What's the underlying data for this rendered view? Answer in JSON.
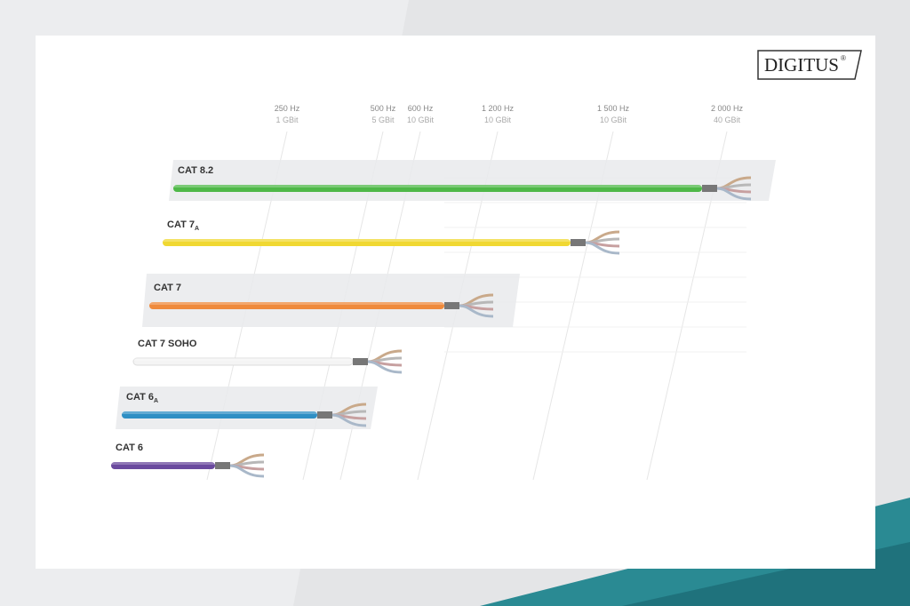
{
  "brand": "DIGITUS",
  "brand_mark": "®",
  "frequencies": [
    {
      "hz": "250 Hz",
      "rate": "1 GBit"
    },
    {
      "hz": "500 Hz",
      "rate": "5 GBit"
    },
    {
      "hz": "600 Hz",
      "rate": "10 GBit"
    },
    {
      "hz": "1 200 Hz",
      "rate": "10 GBit"
    },
    {
      "hz": "1 500 Hz",
      "rate": "10 GBit"
    },
    {
      "hz": "2 000 Hz",
      "rate": "40 GBit"
    }
  ],
  "cables": [
    {
      "name": "CAT 8.2",
      "sub": "",
      "color": "#4fb848"
    },
    {
      "name": "CAT 7",
      "sub": "A",
      "color": "#f0d832"
    },
    {
      "name": "CAT 7",
      "sub": "",
      "color": "#ef8a3c"
    },
    {
      "name": "CAT 7 SOHO",
      "sub": "",
      "color": "#f4f4f4"
    },
    {
      "name": "CAT 6",
      "sub": "A",
      "color": "#2f8fc4"
    },
    {
      "name": "CAT 6",
      "sub": "",
      "color": "#6a4a9e"
    }
  ],
  "colors": {
    "teal": "#2a8a93",
    "background": "#e4e5e7"
  }
}
